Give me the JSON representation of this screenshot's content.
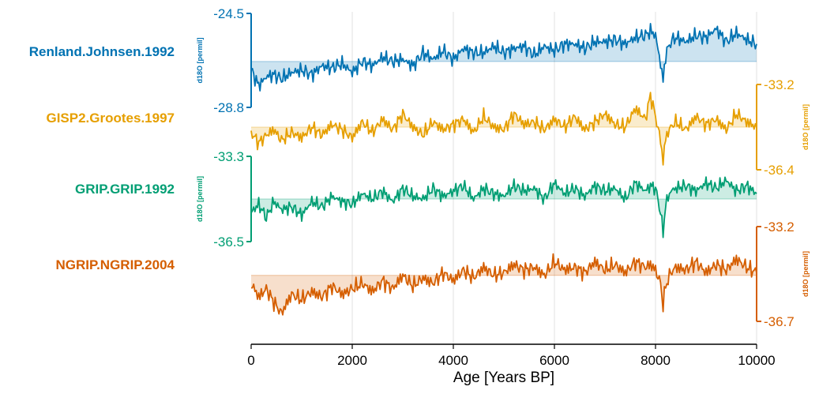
{
  "chart_data": {
    "type": "line",
    "title": "",
    "xlabel": "Age [Years BP]",
    "xlim": [
      0,
      10000
    ],
    "xticks": [
      0,
      2000,
      4000,
      6000,
      8000,
      10000
    ],
    "xtick_labels": [
      "0",
      "2000",
      "4000",
      "6000",
      "8000",
      "10000"
    ],
    "grid": "vertical",
    "series": [
      {
        "name": "Renland.Johnsen.1992",
        "color": "#0072b2",
        "ylabel": "d18O [permil]",
        "axis_side": "left",
        "ylim": [
          -28.8,
          -24.5
        ],
        "ytick_labels": [
          "-24.5",
          "-28.8"
        ],
        "mean": -26.7,
        "x": [
          0,
          150,
          300,
          450,
          600,
          800,
          1000,
          1200,
          1400,
          1600,
          1800,
          2000,
          2200,
          2400,
          2600,
          2800,
          3000,
          3200,
          3400,
          3600,
          3800,
          4000,
          4200,
          4400,
          4600,
          4800,
          5000,
          5200,
          5400,
          5600,
          5800,
          6000,
          6200,
          6400,
          6600,
          6800,
          7000,
          7200,
          7400,
          7600,
          7800,
          7900,
          8000,
          8100,
          8150,
          8200,
          8300,
          8400,
          8600,
          8800,
          9000,
          9200,
          9400,
          9600,
          9800,
          10000
        ],
        "values": [
          -27.1,
          -27.8,
          -27.4,
          -27.3,
          -27.5,
          -27.2,
          -27.1,
          -27.3,
          -26.9,
          -27.0,
          -26.8,
          -27.2,
          -26.7,
          -26.9,
          -26.5,
          -26.7,
          -26.6,
          -26.9,
          -26.3,
          -26.6,
          -26.2,
          -26.6,
          -26.1,
          -26.3,
          -26.3,
          -26.0,
          -26.3,
          -26.1,
          -26.0,
          -26.4,
          -26.0,
          -26.2,
          -25.9,
          -25.9,
          -26.1,
          -25.8,
          -25.8,
          -25.7,
          -25.9,
          -25.6,
          -25.5,
          -25.3,
          -25.5,
          -26.8,
          -27.6,
          -26.4,
          -25.8,
          -25.6,
          -25.8,
          -25.5,
          -25.6,
          -25.2,
          -25.8,
          -25.4,
          -25.7,
          -25.9
        ]
      },
      {
        "name": "GISP2.Grootes.1997",
        "color": "#e69f00",
        "ylabel": "d18O [permil]",
        "axis_side": "right",
        "ylim": [
          -36.4,
          -33.2
        ],
        "ytick_labels": [
          "-33.2",
          "-36.4"
        ],
        "mean": -34.8,
        "x": [
          0,
          150,
          300,
          450,
          600,
          800,
          1000,
          1200,
          1400,
          1600,
          1800,
          2000,
          2200,
          2400,
          2600,
          2800,
          3000,
          3200,
          3400,
          3600,
          3800,
          4000,
          4200,
          4400,
          4600,
          4800,
          5000,
          5200,
          5400,
          5600,
          5800,
          6000,
          6200,
          6400,
          6600,
          6800,
          7000,
          7200,
          7400,
          7600,
          7800,
          7900,
          8000,
          8100,
          8150,
          8200,
          8300,
          8400,
          8600,
          8800,
          9000,
          9200,
          9400,
          9600,
          9800,
          10000
        ],
        "values": [
          -35.0,
          -35.4,
          -35.1,
          -34.9,
          -35.3,
          -35.0,
          -35.2,
          -34.8,
          -35.1,
          -34.7,
          -34.9,
          -35.2,
          -34.6,
          -35.0,
          -34.5,
          -34.9,
          -34.3,
          -34.8,
          -35.1,
          -34.6,
          -34.9,
          -34.7,
          -34.5,
          -35.0,
          -34.4,
          -34.8,
          -34.9,
          -34.3,
          -34.7,
          -34.6,
          -34.9,
          -34.5,
          -34.8,
          -34.4,
          -34.9,
          -34.6,
          -34.3,
          -34.7,
          -34.8,
          -34.1,
          -34.5,
          -33.6,
          -34.4,
          -35.3,
          -36.1,
          -35.2,
          -34.8,
          -34.6,
          -34.9,
          -34.4,
          -34.7,
          -34.5,
          -34.9,
          -34.3,
          -34.6,
          -34.8
        ]
      },
      {
        "name": "GRIP.GRIP.1992",
        "color": "#009e73",
        "ylabel": "d18O [permil]",
        "axis_side": "left",
        "ylim": [
          -36.5,
          -33.3
        ],
        "ytick_labels": [
          "-33.3",
          "-36.5"
        ],
        "mean": -34.9,
        "x": [
          0,
          150,
          300,
          450,
          600,
          800,
          1000,
          1200,
          1400,
          1600,
          1800,
          2000,
          2200,
          2400,
          2600,
          2800,
          3000,
          3200,
          3400,
          3600,
          3800,
          4000,
          4200,
          4400,
          4600,
          4800,
          5000,
          5200,
          5400,
          5600,
          5800,
          6000,
          6200,
          6400,
          6600,
          6800,
          7000,
          7200,
          7400,
          7600,
          7800,
          7900,
          8000,
          8100,
          8150,
          8200,
          8300,
          8400,
          8600,
          8800,
          9000,
          9200,
          9400,
          9600,
          9800,
          10000
        ],
        "values": [
          -35.4,
          -35.1,
          -35.6,
          -35.0,
          -35.3,
          -35.2,
          -35.5,
          -35.0,
          -35.2,
          -34.8,
          -35.0,
          -35.1,
          -34.7,
          -34.9,
          -34.6,
          -35.0,
          -34.5,
          -34.8,
          -34.9,
          -34.5,
          -34.8,
          -34.6,
          -34.4,
          -34.9,
          -34.5,
          -34.7,
          -34.8,
          -34.4,
          -34.6,
          -34.5,
          -34.9,
          -34.3,
          -34.7,
          -34.5,
          -34.8,
          -34.4,
          -34.6,
          -34.5,
          -34.9,
          -34.3,
          -34.6,
          -34.4,
          -34.5,
          -35.4,
          -36.2,
          -35.1,
          -34.6,
          -34.5,
          -34.4,
          -34.6,
          -34.3,
          -34.5,
          -34.2,
          -34.6,
          -34.4,
          -34.7
        ]
      },
      {
        "name": "NGRIP.NGRIP.2004",
        "color": "#d55e00",
        "ylabel": "d18O [permil]",
        "axis_side": "right",
        "ylim": [
          -36.7,
          -33.2
        ],
        "ytick_labels": [
          "-33.2",
          "-36.7"
        ],
        "mean": -35.0,
        "x": [
          0,
          150,
          300,
          450,
          600,
          800,
          1000,
          1200,
          1400,
          1600,
          1800,
          2000,
          2200,
          2400,
          2600,
          2800,
          3000,
          3200,
          3400,
          3600,
          3800,
          4000,
          4200,
          4400,
          4600,
          4800,
          5000,
          5200,
          5400,
          5600,
          5800,
          6000,
          6200,
          6400,
          6600,
          6800,
          7000,
          7200,
          7400,
          7600,
          7800,
          7900,
          8000,
          8100,
          8150,
          8200,
          8300,
          8400,
          8600,
          8800,
          9000,
          9200,
          9400,
          9600,
          9800,
          10000
        ],
        "values": [
          -35.3,
          -35.8,
          -35.5,
          -36.0,
          -36.4,
          -35.7,
          -35.9,
          -35.6,
          -35.8,
          -35.4,
          -35.7,
          -35.5,
          -35.3,
          -35.6,
          -35.2,
          -35.5,
          -35.0,
          -35.4,
          -35.1,
          -35.3,
          -34.9,
          -35.2,
          -34.8,
          -35.1,
          -34.7,
          -35.0,
          -34.9,
          -34.6,
          -34.8,
          -34.7,
          -35.0,
          -34.5,
          -34.8,
          -34.7,
          -34.9,
          -34.5,
          -34.8,
          -34.6,
          -34.9,
          -34.5,
          -34.7,
          -34.6,
          -34.8,
          -35.3,
          -36.1,
          -35.4,
          -34.9,
          -34.7,
          -34.8,
          -34.5,
          -34.9,
          -34.6,
          -34.8,
          -34.4,
          -34.7,
          -34.9
        ]
      }
    ]
  }
}
